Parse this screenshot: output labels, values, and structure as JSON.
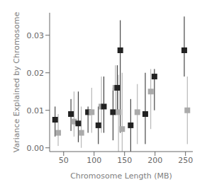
{
  "chart_data": {
    "type": "scatter",
    "xlabel": "Chromosome Length (MB)",
    "ylabel": "Variance Explained by Chromosome",
    "x": [
      36,
      41,
      62,
      67,
      74,
      79,
      90,
      96,
      107,
      112,
      116,
      131,
      135,
      138,
      140,
      143,
      146,
      160,
      171,
      184,
      193,
      199,
      248,
      253
    ],
    "values": [
      0.0075,
      0.004,
      0.009,
      0.007,
      0.0065,
      0.004,
      0.0095,
      0.0095,
      0.006,
      0.011,
      0.011,
      0.0095,
      0.016,
      0.016,
      0.0095,
      0.026,
      0.005,
      0.006,
      0.0095,
      0.009,
      0.015,
      0.019,
      0.026,
      0.01
    ],
    "lo": [
      0.003,
      0.0005,
      0.0045,
      0.003,
      0.0015,
      0.0,
      0.004,
      0.004,
      0.001,
      0.004,
      0.004,
      0.002,
      0.009,
      0.009,
      -0.001,
      0.004,
      -0.001,
      -0.001,
      0.001,
      0.001,
      0.005,
      0.01,
      0.019,
      0.001
    ],
    "hi": [
      0.011,
      0.009,
      0.013,
      0.015,
      0.015,
      0.011,
      0.011,
      0.016,
      0.011,
      0.019,
      0.019,
      0.016,
      0.022,
      0.022,
      0.0195,
      0.034,
      0.02,
      0.013,
      0.017,
      0.02,
      0.021,
      0.021,
      0.035,
      0.019
    ],
    "colors": [
      "#222222",
      "#aaaaaa",
      "#222222",
      "#aaaaaa",
      "#222222",
      "#aaaaaa",
      "#222222",
      "#aaaaaa",
      "#222222",
      "#aaaaaa",
      "#222222",
      "#222222",
      "#aaaaaa",
      "#222222",
      "#aaaaaa",
      "#222222",
      "#aaaaaa",
      "#222222",
      "#aaaaaa",
      "#222222",
      "#aaaaaa",
      "#222222",
      "#222222",
      "#aaaaaa"
    ],
    "marker": "square",
    "xlim": [
      27,
      262
    ],
    "ylim": [
      -0.001,
      0.036
    ],
    "xticks": [
      50,
      100,
      150,
      200,
      250
    ],
    "yticks": [
      {
        "value": 0,
        "label": "0.00"
      },
      0.01,
      0.02,
      0.03
    ]
  }
}
